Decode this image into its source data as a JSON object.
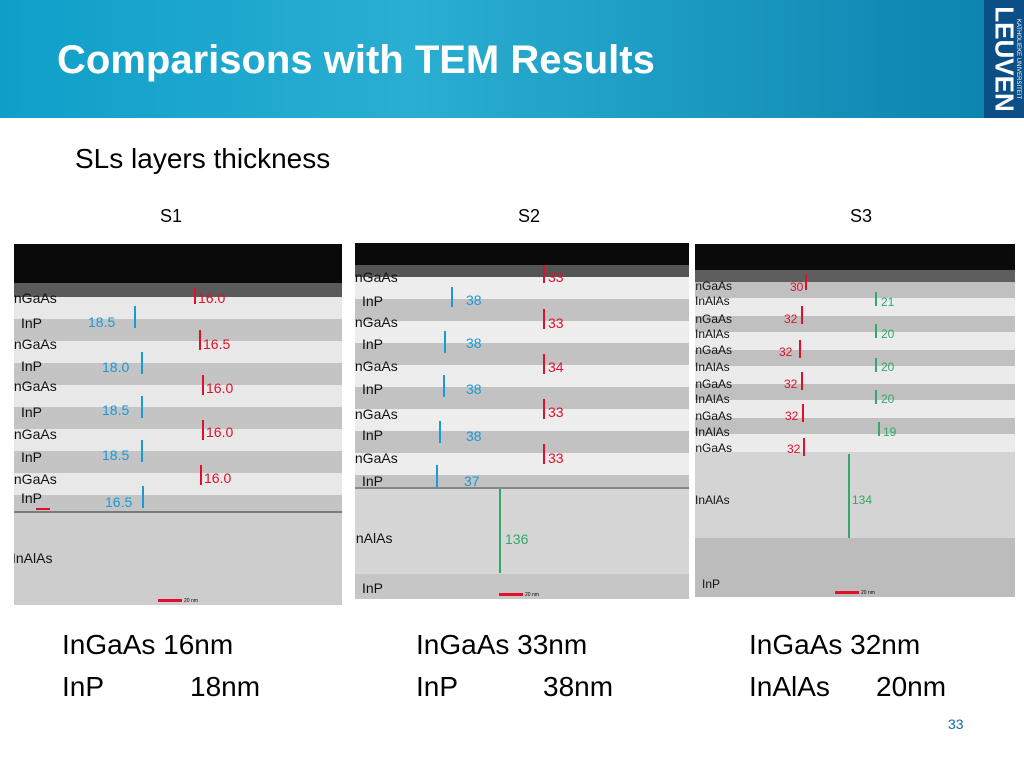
{
  "header": {
    "title": "Comparisons with TEM Results",
    "logo_main": "LEUVEN",
    "logo_sub": "KATHOLIEKE UNIVERSITEIT"
  },
  "subtitle": "SLs layers thickness",
  "samples": [
    {
      "name": "S1",
      "layers": [
        "InGaAs",
        "InP",
        "InGaAs",
        "InP",
        "InGaAs",
        "InP",
        "InGaAs",
        "InP",
        "InGaAs",
        "InP",
        "InAlAs"
      ],
      "values": [
        "16.0",
        "18.5",
        "16.5",
        "18.0",
        "16.0",
        "18.5",
        "16.0",
        "18.5",
        "16.0",
        "16.5"
      ]
    },
    {
      "name": "S2",
      "layers": [
        "InGaAs",
        "InP",
        "InGaAs",
        "InP",
        "InGaAs",
        "InP",
        "InGaAs",
        "InP",
        "InGaAs",
        "InP",
        "InAlAs",
        "InP"
      ],
      "values": [
        "33",
        "38",
        "33",
        "38",
        "34",
        "38",
        "33",
        "38",
        "33",
        "37",
        "136"
      ]
    },
    {
      "name": "S3",
      "layers": [
        "InGaAs",
        "InAlAs",
        "InGaAs",
        "InAlAs",
        "InGaAs",
        "InAlAs",
        "InGaAs",
        "InAlAs",
        "InGaAs",
        "InAlAs",
        "InGaAs",
        "InAlAs",
        "InP"
      ],
      "values": [
        "30",
        "21",
        "32",
        "20",
        "32",
        "20",
        "32",
        "20",
        "32",
        "19",
        "32",
        "134"
      ]
    }
  ],
  "scale_label": "20 nm",
  "summary": [
    {
      "line1": "InGaAs 16nm",
      "line2a": "InP",
      "line2b": "18nm"
    },
    {
      "line1": "InGaAs 33nm",
      "line2a": "InP",
      "line2b": "38nm"
    },
    {
      "line1": "InGaAs 32nm",
      "line2a": "InAlAs",
      "line2b": "20nm"
    }
  ],
  "page_number": "33"
}
